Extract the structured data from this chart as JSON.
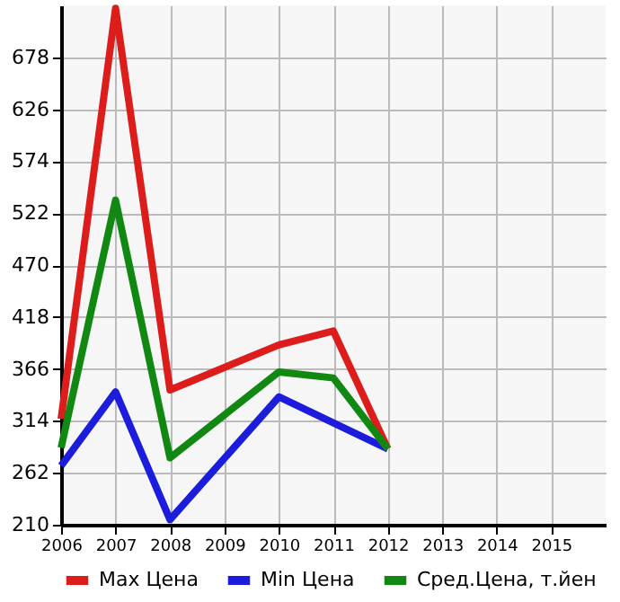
{
  "chart_data": {
    "type": "line",
    "x": [
      2006,
      2007,
      2008,
      2010,
      2011,
      2012
    ],
    "series": [
      {
        "name": "Max Цена",
        "color": "#dd1c1c",
        "values": [
          316,
          727,
          345,
          390,
          404,
          286
        ]
      },
      {
        "name": "Min Цена",
        "color": "#1c1cdd",
        "values": [
          269,
          343,
          215,
          338,
          312,
          286
        ]
      },
      {
        "name": "Сред.Цена, т.йен",
        "color": "#118811",
        "values": [
          287,
          535,
          277,
          363,
          357,
          286
        ]
      }
    ],
    "xlim": [
      2006,
      2016
    ],
    "xticks": [
      2006,
      2007,
      2008,
      2009,
      2010,
      2011,
      2012,
      2013,
      2014,
      2015
    ],
    "ylim": [
      210,
      730
    ],
    "yticks": [
      210,
      262,
      314,
      366,
      418,
      470,
      522,
      574,
      626,
      678
    ],
    "grid": true,
    "legend": "bottom",
    "marker": "none",
    "line_style": "solid"
  }
}
